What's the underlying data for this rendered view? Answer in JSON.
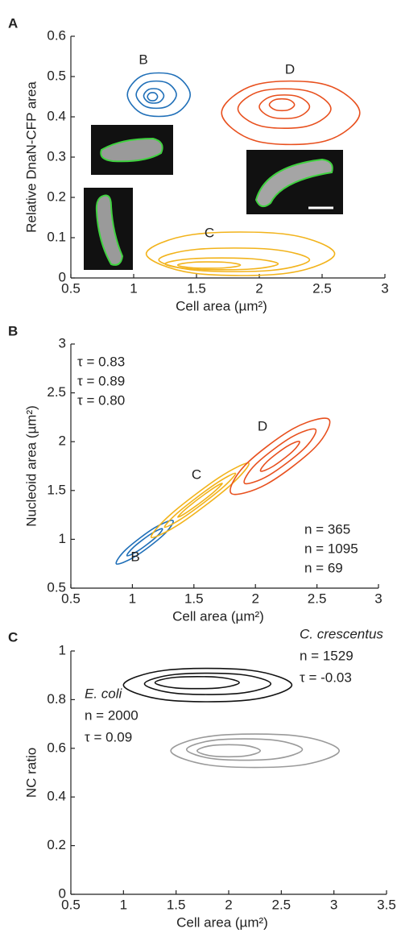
{
  "chart_data": [
    {
      "type": "contour",
      "label": "A",
      "xlabel": "Cell area (µm²)",
      "ylabel": "Relative DnaN-CFP area",
      "xlim": [
        0.5,
        3
      ],
      "ylim": [
        0,
        0.6
      ],
      "xticks": [
        0.5,
        1,
        1.5,
        2,
        2.5,
        3
      ],
      "yticks": [
        0,
        0.1,
        0.2,
        0.3,
        0.4,
        0.5,
        0.6
      ],
      "series": [
        {
          "name": "B",
          "color": "#1f6fb8",
          "contours": [
            {
              "x": [
                1.45,
                1.325,
                1.075,
                0.95,
                1.075,
                1.325
              ],
              "y": [
                0.455,
                0.503,
                0.503,
                0.455,
                0.407,
                0.407
              ]
            },
            {
              "x": [
                1.34,
                1.26,
                1.1,
                1.02,
                1.1,
                1.26
              ],
              "y": [
                0.455,
                0.485,
                0.485,
                0.455,
                0.425,
                0.425
              ]
            },
            {
              "x": [
                1.24,
                1.2,
                1.12,
                1.08,
                1.12,
                1.2
              ],
              "y": [
                0.452,
                0.468,
                0.468,
                0.452,
                0.436,
                0.436
              ]
            },
            {
              "x": [
                1.19,
                1.17,
                1.13,
                1.11,
                1.13,
                1.17
              ],
              "y": [
                0.45,
                0.459,
                0.459,
                0.45,
                0.441,
                0.441
              ]
            }
          ]
        },
        {
          "name": "D",
          "color": "#e8501e",
          "contours": [
            {
              "x": [
                2.8,
                2.525,
                1.975,
                1.7,
                1.975,
                2.525
              ],
              "y": [
                0.41,
                0.48,
                0.48,
                0.41,
                0.34,
                0.34
              ]
            },
            {
              "x": [
                2.57,
                2.385,
                2.015,
                1.83,
                2.015,
                2.385
              ],
              "y": [
                0.42,
                0.464,
                0.464,
                0.42,
                0.377,
                0.377
              ]
            },
            {
              "x": [
                2.4,
                2.3,
                2.1,
                2.0,
                2.1,
                2.3
              ],
              "y": [
                0.425,
                0.451,
                0.451,
                0.425,
                0.399,
                0.399
              ]
            },
            {
              "x": [
                2.28,
                2.23,
                2.13,
                2.08,
                2.13,
                2.23
              ],
              "y": [
                0.43,
                0.443,
                0.443,
                0.43,
                0.417,
                0.417
              ]
            }
          ]
        },
        {
          "name": "C",
          "color": "#f2b31b",
          "contours": [
            {
              "x": [
                2.6,
                2.225,
                1.475,
                1.1,
                1.475,
                2.225
              ],
              "y": [
                0.06,
                0.108,
                0.108,
                0.06,
                0.012,
                0.012
              ]
            },
            {
              "x": [
                2.4,
                2.1,
                1.5,
                1.2,
                1.5,
                2.1
              ],
              "y": [
                0.045,
                0.071,
                0.071,
                0.045,
                0.019,
                0.019
              ]
            },
            {
              "x": [
                2.15,
                1.925,
                1.475,
                1.25,
                1.475,
                1.925
              ],
              "y": [
                0.035,
                0.048,
                0.048,
                0.035,
                0.022,
                0.022
              ]
            },
            {
              "x": [
                1.85,
                1.725,
                1.475,
                1.35,
                1.475,
                1.725
              ],
              "y": [
                0.032,
                0.039,
                0.039,
                0.032,
                0.025,
                0.025
              ]
            }
          ]
        }
      ]
    },
    {
      "type": "contour",
      "label": "B",
      "xlabel": "Cell area (µm²)",
      "ylabel": "Nucleoid area (µm²)",
      "xlim": [
        0.5,
        3
      ],
      "ylim": [
        0.5,
        3
      ],
      "xticks": [
        0.5,
        1,
        1.5,
        2,
        2.5,
        3
      ],
      "yticks": [
        0.5,
        1,
        1.5,
        2,
        2.5,
        3
      ],
      "series": [
        {
          "name": "B",
          "color": "#1f6fb8",
          "tau": "τ = 0.83",
          "n": "n = 365",
          "contours": [
            {
              "x": [
                1.33,
                1.179,
                0.949,
                0.87,
                1.021,
                1.251
              ],
              "y": [
                1.191,
                1.117,
                0.897,
                0.749,
                0.823,
                1.043
              ]
            },
            {
              "x": [
                1.244,
                1.154,
                1.01,
                0.956,
                1.046,
                1.19
              ],
              "y": [
                1.108,
                1.058,
                0.92,
                0.832,
                0.882,
                1.02
              ]
            }
          ]
        },
        {
          "name": "C",
          "color": "#f2b31b",
          "tau": "τ = 0.89",
          "n": "n = 1095",
          "contours": [
            {
              "x": [
                1.946,
                1.706,
                1.31,
                1.154,
                1.394,
                1.79
              ],
              "y": [
                1.78,
                1.634,
                1.254,
                1.02,
                1.166,
                1.546
              ]
            },
            {
              "x": [
                1.838,
                1.67,
                1.382,
                1.262,
                1.43,
                1.718
              ],
              "y": [
                1.676,
                1.563,
                1.287,
                1.124,
                1.237,
                1.513
              ]
            },
            {
              "x": [
                1.73,
                1.628,
                1.448,
                1.37,
                1.472,
                1.652
              ],
              "y": [
                1.573,
                1.498,
                1.326,
                1.227,
                1.302,
                1.474
              ]
            }
          ]
        },
        {
          "name": "D",
          "color": "#e8501e",
          "tau": "τ = 0.80",
          "n": "n = 69",
          "contours": [
            {
              "x": [
                2.596,
                2.308,
                1.912,
                1.804,
                2.092,
                2.488
              ],
              "y": [
                2.23,
                2.134,
                1.754,
                1.47,
                1.566,
                1.946
              ]
            },
            {
              "x": [
                2.488,
                2.29,
                2.002,
                1.912,
                2.11,
                2.398
              ],
              "y": [
                2.126,
                2.044,
                1.768,
                1.574,
                1.656,
                1.932
              ]
            },
            {
              "x": [
                2.358,
                2.255,
                2.097,
                2.042,
                2.145,
                2.303
              ],
              "y": [
                2.002,
                1.951,
                1.799,
                1.698,
                1.749,
                1.901
              ]
            }
          ]
        }
      ]
    },
    {
      "type": "contour",
      "label": "C",
      "xlabel": "Cell area (µm²)",
      "ylabel": "NC ratio",
      "xlim": [
        0.5,
        3.5
      ],
      "ylim": [
        0,
        1
      ],
      "xticks": [
        0.5,
        1,
        1.5,
        2,
        2.5,
        3,
        3.5
      ],
      "yticks": [
        0,
        0.2,
        0.4,
        0.6,
        0.8,
        1
      ],
      "series": [
        {
          "name": "C. crescentus",
          "color": "#111111",
          "n": "n = 1529",
          "tau": "τ = -0.03",
          "contours": [
            {
              "x": [
                2.6,
                2.2,
                1.4,
                1.0,
                1.4,
                2.2
              ],
              "y": [
                0.86,
                0.921,
                0.921,
                0.86,
                0.799,
                0.799
              ]
            },
            {
              "x": [
                2.4,
                2.1,
                1.5,
                1.2,
                1.5,
                2.1
              ],
              "y": [
                0.865,
                0.904,
                0.904,
                0.865,
                0.826,
                0.826
              ]
            },
            {
              "x": [
                2.1,
                1.9,
                1.5,
                1.3,
                1.5,
                1.9
              ],
              "y": [
                0.87,
                0.892,
                0.892,
                0.87,
                0.848,
                0.848
              ]
            }
          ]
        },
        {
          "name": "E. coli",
          "color": "#9a9a9a",
          "n": "n = 2000",
          "tau": "τ = 0.09",
          "contours": [
            {
              "x": [
                3.05,
                2.65,
                1.85,
                1.45,
                1.85,
                2.65
              ],
              "y": [
                0.59,
                0.651,
                0.651,
                0.59,
                0.529,
                0.529
              ]
            },
            {
              "x": [
                2.7,
                2.425,
                1.875,
                1.6,
                1.875,
                2.425
              ],
              "y": [
                0.595,
                0.634,
                0.634,
                0.595,
                0.556,
                0.556
              ]
            },
            {
              "x": [
                2.3,
                2.15,
                1.85,
                1.7,
                1.85,
                2.15
              ],
              "y": [
                0.59,
                0.612,
                0.612,
                0.59,
                0.568,
                0.568
              ]
            }
          ]
        }
      ]
    }
  ]
}
